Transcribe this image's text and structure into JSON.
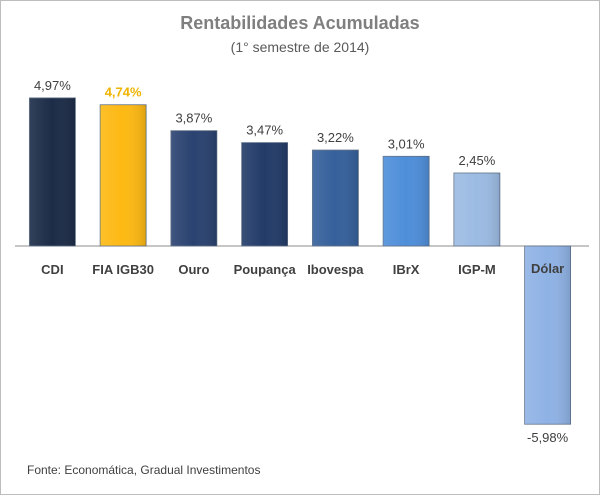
{
  "chart_data": {
    "type": "bar",
    "title": "Rentabilidades Acumuladas",
    "subtitle": "(1° semestre de 2014)",
    "categories": [
      "CDI",
      "FIA IGB30",
      "Ouro",
      "Poupança",
      "Ibovespa",
      "IBrX",
      "IGP-M",
      "Dólar"
    ],
    "values": [
      4.97,
      4.74,
      3.87,
      3.47,
      3.22,
      3.01,
      2.45,
      -5.98
    ],
    "value_labels": [
      "4,97%",
      "4,74%",
      "3,87%",
      "3,47%",
      "3,22%",
      "3,01%",
      "2,45%",
      "-5,98%"
    ],
    "bar_colors": [
      "#1c2c47",
      "#fdb913",
      "#2a4270",
      "#223b68",
      "#35609b",
      "#4e8ed9",
      "#9cbbe3",
      "#8fb2e5"
    ],
    "highlight_label_color": "#f0b400",
    "label_color": "#404040",
    "ylim": [
      -5.98,
      4.97
    ],
    "grid": false,
    "legend": "none"
  },
  "source": "Fonte: Economática, Gradual Investimentos"
}
